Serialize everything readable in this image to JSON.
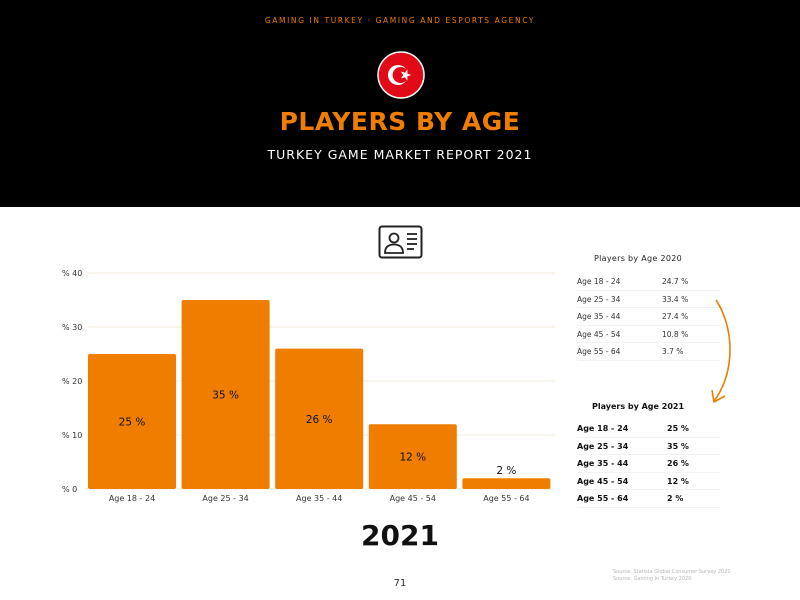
{
  "header": {
    "agency": "GAMING IN TURKEY · GAMING AND ESPORTS AGENCY",
    "title": "PLAYERS BY AGE",
    "subtitle": "TURKEY GAME MARKET REPORT 2021"
  },
  "colors": {
    "accent": "#EE7D00",
    "header_bg": "#000000",
    "flag_red": "#E30A17"
  },
  "icons": {
    "flag": "turkey-flag-icon",
    "id_card": "id-card-icon",
    "arrow": "curved-arrow-icon"
  },
  "chart_data": {
    "type": "bar",
    "categories": [
      "Age 18 - 24",
      "Age 25 - 34",
      "Age 35 - 44",
      "Age 45 - 54",
      "Age 55 - 64"
    ],
    "values": [
      25,
      35,
      26,
      12,
      2
    ],
    "data_labels": [
      "25 %",
      "35 %",
      "26 %",
      "12 %",
      "2 %"
    ],
    "yticks": [
      0,
      10,
      20,
      30,
      40
    ],
    "ytick_labels": [
      "% 0",
      "% 10",
      "% 20",
      "% 30",
      "% 40"
    ],
    "ylim": [
      0,
      40
    ],
    "grid": true,
    "title": "",
    "xlabel": "",
    "ylabel": ""
  },
  "year_label": "2021",
  "table_2020": {
    "title": "Players by Age 2020",
    "rows": [
      {
        "age": "Age 18 - 24",
        "value": "24.7 %"
      },
      {
        "age": "Age 25 - 34",
        "value": "33.4 %"
      },
      {
        "age": "Age 35 - 44",
        "value": "27.4 %"
      },
      {
        "age": "Age 45 - 54",
        "value": "10.8 %"
      },
      {
        "age": "Age 55 - 64",
        "value": "3.7 %"
      }
    ]
  },
  "table_2021": {
    "title": "Players by Age 2021",
    "rows": [
      {
        "age": "Age 18 - 24",
        "value": "25 %"
      },
      {
        "age": "Age 25 - 34",
        "value": "35 %"
      },
      {
        "age": "Age 35 - 44",
        "value": "26 %"
      },
      {
        "age": "Age 45 - 54",
        "value": "12 %"
      },
      {
        "age": "Age 55 - 64",
        "value": "2 %"
      }
    ]
  },
  "source": {
    "line1": "Source: Statista Global Consumer Survey 2021",
    "line2": "Source: Gaming In Turkey 2020"
  },
  "page_number": "71"
}
